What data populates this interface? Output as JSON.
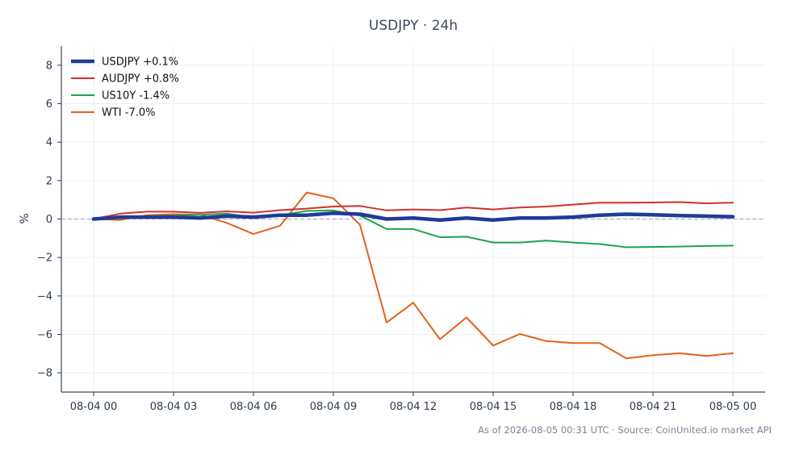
{
  "chart_data": {
    "type": "line",
    "title": "USDJPY · 24h",
    "xlabel": "",
    "ylabel": "%",
    "x": [
      "08-04 00",
      "08-04 01",
      "08-04 02",
      "08-04 03",
      "08-04 04",
      "08-04 05",
      "08-04 06",
      "08-04 07",
      "08-04 08",
      "08-04 09",
      "08-04 10",
      "08-04 11",
      "08-04 12",
      "08-04 13",
      "08-04 14",
      "08-04 15",
      "08-04 16",
      "08-04 17",
      "08-04 18",
      "08-04 19",
      "08-04 20",
      "08-04 21",
      "08-04 22",
      "08-04 23",
      "08-05 00"
    ],
    "x_ticks": [
      "08-04 00",
      "08-04 03",
      "08-04 06",
      "08-04 09",
      "08-04 12",
      "08-04 15",
      "08-04 18",
      "08-04 21",
      "08-05 00"
    ],
    "ylim": [
      -9,
      9
    ],
    "y_ticks": [
      -8,
      -6,
      -4,
      -2,
      0,
      2,
      4,
      6,
      8
    ],
    "y_tick_labels": [
      "−8",
      "−6",
      "−4",
      "−2",
      "0",
      "2",
      "4",
      "6",
      "8"
    ],
    "grid": true,
    "zero_line": true,
    "legend_position": "top-left",
    "series": [
      {
        "name": "USDJPY +0.1%",
        "color": "#1f3b99",
        "values": [
          0.0,
          0.1,
          0.1,
          0.1,
          0.05,
          0.15,
          0.1,
          0.2,
          0.2,
          0.3,
          0.25,
          0.0,
          0.05,
          -0.05,
          0.05,
          -0.05,
          0.05,
          0.05,
          0.1,
          0.2,
          0.25,
          0.22,
          0.18,
          0.15,
          0.12
        ]
      },
      {
        "name": "AUDJPY +0.8%",
        "color": "#d0312d",
        "values": [
          0.0,
          0.28,
          0.38,
          0.38,
          0.32,
          0.4,
          0.33,
          0.46,
          0.54,
          0.65,
          0.68,
          0.45,
          0.5,
          0.46,
          0.6,
          0.5,
          0.6,
          0.65,
          0.75,
          0.85,
          0.85,
          0.86,
          0.88,
          0.82,
          0.85
        ]
      },
      {
        "name": "US10Y -1.4%",
        "color": "#1fa34a",
        "values": [
          0.0,
          0.05,
          0.15,
          0.18,
          0.22,
          0.28,
          0.08,
          0.2,
          0.42,
          0.45,
          0.18,
          -0.52,
          -0.52,
          -0.95,
          -0.92,
          -1.22,
          -1.22,
          -1.12,
          -1.22,
          -1.3,
          -1.47,
          -1.45,
          -1.43,
          -1.4,
          -1.38
        ]
      },
      {
        "name": "WTI -7.0%",
        "color": "#e0621b",
        "values": [
          0.0,
          -0.05,
          0.2,
          0.25,
          0.22,
          -0.2,
          -0.78,
          -0.35,
          1.38,
          1.08,
          -0.3,
          -5.38,
          -4.35,
          -6.25,
          -5.12,
          -6.58,
          -5.98,
          -6.35,
          -6.45,
          -6.45,
          -7.25,
          -7.08,
          -6.98,
          -7.12,
          -6.98
        ]
      }
    ],
    "footer": "As of 2026-08-05 00:31 UTC · Source: CoinUnited.io market API"
  }
}
